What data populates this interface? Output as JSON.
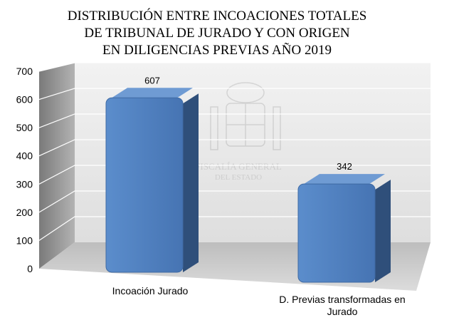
{
  "chart_data": {
    "type": "bar",
    "title_lines": [
      "DISTRIBUCIÓN ENTRE INCOACIONES TOTALES",
      "DE TRIBUNAL DE JURADO Y CON ORIGEN",
      "EN DILIGENCIAS PREVIAS AÑO 2019"
    ],
    "categories": [
      [
        "Incoación Jurado"
      ],
      [
        "D. Previas transformadas en",
        "Jurado"
      ]
    ],
    "values": [
      607,
      342
    ],
    "data_labels": [
      "607",
      "342"
    ],
    "yticks": [
      0,
      100,
      200,
      300,
      400,
      500,
      600,
      700
    ],
    "ylim": [
      0,
      700
    ],
    "grid": true,
    "legend": "none",
    "watermark_text": [
      "FISCALÍA GENERAL",
      "DEL ESTADO"
    ],
    "colors": {
      "bar_front": "#4f81bd",
      "bar_top": "#6f9bd3",
      "bar_side": "#2f4f7a",
      "back_wall": "#e9e9e9",
      "side_wall": "#8c8c8c",
      "floor": "#c9c9c9",
      "grid": "#ffffff"
    }
  }
}
